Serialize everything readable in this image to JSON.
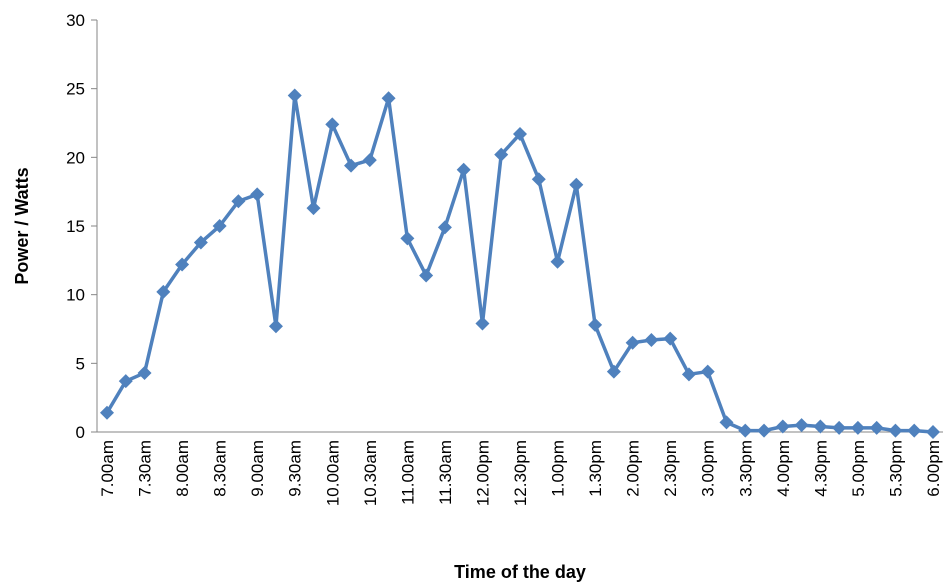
{
  "chart_data": {
    "type": "line",
    "x_label": "Time of the day",
    "y_label": "Power / Watts",
    "categories": [
      "7.00am",
      null,
      "7.30am",
      null,
      "8.00am",
      null,
      "8.30am",
      null,
      "9.00am",
      null,
      "9.30am",
      null,
      "10.00am",
      null,
      "10.30am",
      null,
      "11.00am",
      null,
      "11.30am",
      null,
      "12.00pm",
      null,
      "12.30pm",
      null,
      "1.00pm",
      null,
      "1.30pm",
      null,
      "2.00pm",
      null,
      "2.30pm",
      null,
      "3.00pm",
      null,
      "3.30pm",
      null,
      "4.00pm",
      null,
      "4.30pm",
      null,
      "5.00pm",
      null,
      "5.30pm",
      null,
      "6.00pm"
    ],
    "series": [
      {
        "name": "Power",
        "color": "#4f81bd",
        "values": [
          1.4,
          3.7,
          4.3,
          10.2,
          12.2,
          13.8,
          15.0,
          16.8,
          17.3,
          7.7,
          24.5,
          16.3,
          22.4,
          19.4,
          19.8,
          24.3,
          14.1,
          11.4,
          14.9,
          19.1,
          7.9,
          20.2,
          21.7,
          18.4,
          12.4,
          18.0,
          7.8,
          4.4,
          6.5,
          6.7,
          6.8,
          4.2,
          4.4,
          0.7,
          0.1,
          0.1,
          0.4,
          0.5,
          0.4,
          0.3,
          0.3,
          0.3,
          0.1,
          0.1,
          0
        ]
      }
    ],
    "ylim": [
      0,
      30
    ],
    "yticks": [
      0,
      5,
      10,
      15,
      20,
      25,
      30
    ],
    "grid": false
  }
}
